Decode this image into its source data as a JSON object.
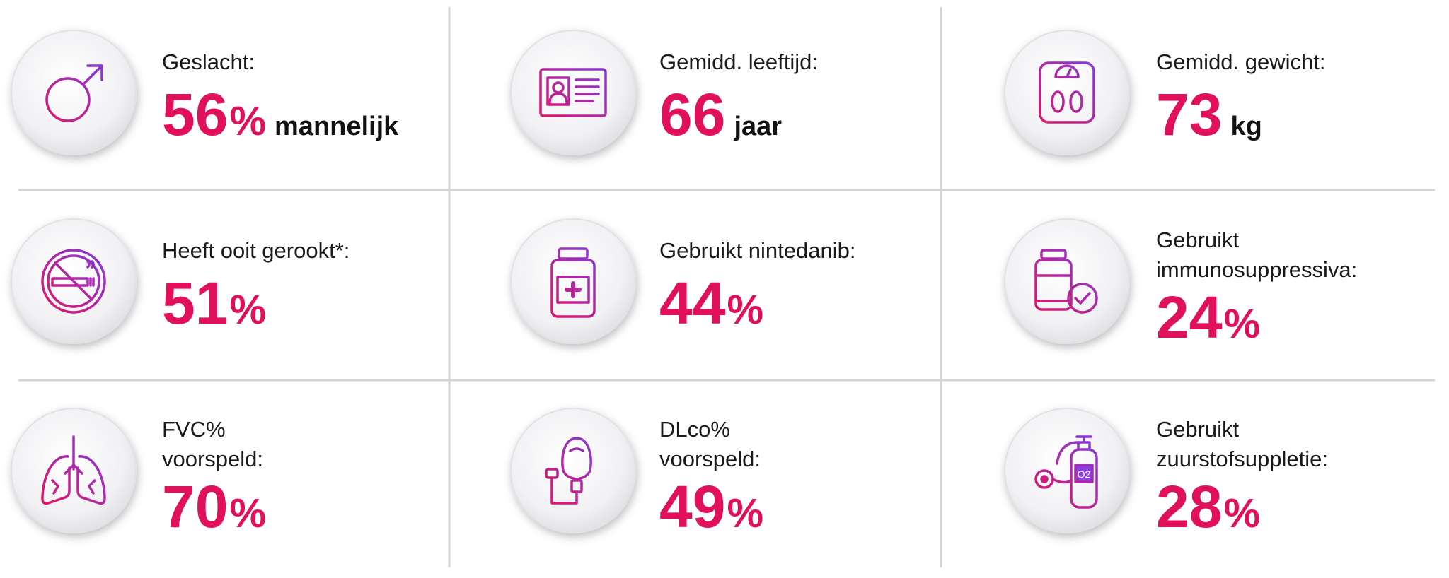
{
  "cells": [
    {
      "label": [
        "Geslacht:"
      ],
      "value": 56,
      "percent": "%",
      "unit": "mannelijk"
    },
    {
      "label": [
        "Gemidd. leeftijd:"
      ],
      "value": 66,
      "unit": "jaar"
    },
    {
      "label": [
        "Gemidd. gewicht:"
      ],
      "value": 73,
      "unit": "kg"
    },
    {
      "label": [
        "Heeft ooit gerookt*:"
      ],
      "value": 51,
      "percent": "%"
    },
    {
      "label": [
        "Gebruikt nintedanib:"
      ],
      "value": 44,
      "percent": "%"
    },
    {
      "label": [
        "Gebruikt",
        "immunosuppressiva:"
      ],
      "value": 24,
      "percent": "%"
    },
    {
      "label": [
        "FVC%",
        "voorspeld:"
      ],
      "value": 70,
      "percent": "%"
    },
    {
      "label": [
        "DLco%",
        "voorspeld:"
      ],
      "value": 49,
      "percent": "%"
    },
    {
      "label": [
        "Gebruikt",
        "zuurstofsuppletie:"
      ],
      "value": 28,
      "percent": "%",
      "icon_text": "O2"
    }
  ]
}
